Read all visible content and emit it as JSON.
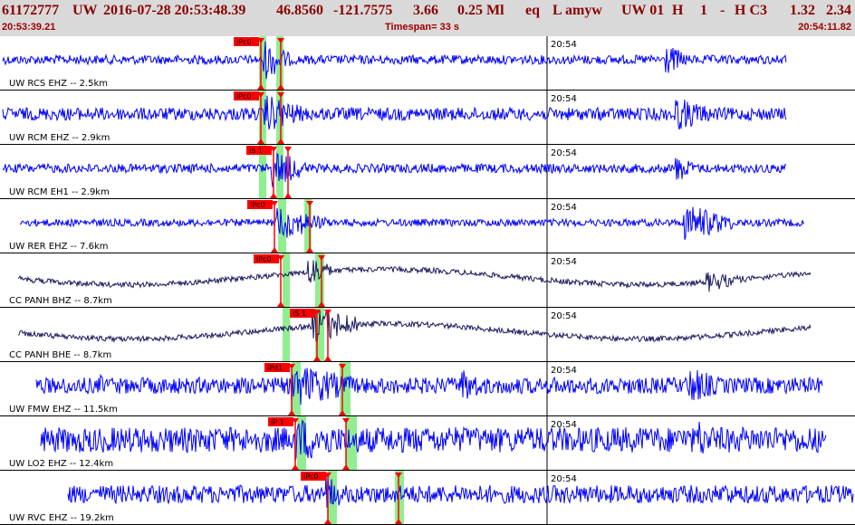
{
  "header": {
    "event_id": "61172777",
    "network": "UW",
    "datetime": "2016-07-28 20:53:48.39",
    "lat": "46.8560",
    "lon": "-121.7575",
    "depth": "3.66",
    "mag": "0.25 Ml",
    "etype": "eq",
    "flag": "L",
    "author": "amyw",
    "source": "UW 01",
    "h": "H",
    "one": "1",
    "dash": "-",
    "hc": "H C3",
    "v1": "1.32",
    "v2": "2.34",
    "start_time": "20:53:39.21",
    "timespan": "Timespan=  33 s",
    "end_time": "20:54:11.82"
  },
  "tick_label": "20:54",
  "colors": {
    "header_bg": "#d9d9d9",
    "header_text": "#8b0000",
    "trace_blue": "#0000ff",
    "trace_dark": "#1a1a5e",
    "pick_red": "#ff0000",
    "pick_band": "#90ee90"
  },
  "traces": [
    {
      "label": "UW RCS EHZ -- 2.5km",
      "pick1": "iPc0",
      "pick2": "",
      "color": "blue"
    },
    {
      "label": "UW RCM EHZ -- 2.9km",
      "pick1": "iPc0",
      "pick2": "",
      "color": "blue"
    },
    {
      "label": "UW RCM EH1 -- 2.9km",
      "pick1": "iS 1",
      "pick2": "",
      "color": "blue"
    },
    {
      "label": "UW RER EHZ -- 7.6km",
      "pick1": "iPc0",
      "pick2": "",
      "color": "blue"
    },
    {
      "label": "CC PANH BHZ -- 8.7km",
      "pick1": "iPc0",
      "pick2": "",
      "color": "dark"
    },
    {
      "label": "CC PANH BHE -- 8.7km",
      "pick1": "iS 1",
      "pick2": "",
      "color": "dark"
    },
    {
      "label": "UW FMW EHZ -- 11.5km",
      "pick1": "iPd1",
      "pick2": "",
      "color": "blue"
    },
    {
      "label": "UW LO2 EHZ -- 12.4km",
      "pick1": "iP 1",
      "pick2": "",
      "color": "blue"
    },
    {
      "label": "UW RVC EHZ -- 19.2km",
      "pick1": "iPc0",
      "pick2": "",
      "color": "blue"
    }
  ]
}
